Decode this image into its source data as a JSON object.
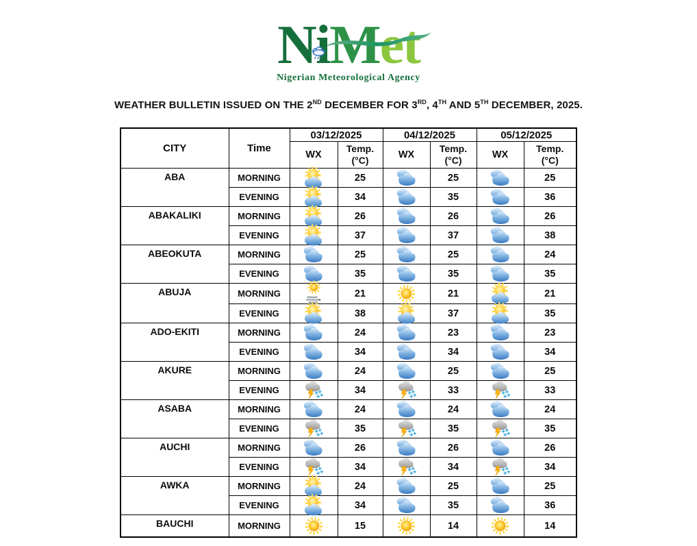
{
  "logo": {
    "n": "N",
    "i": "i",
    "m": "M",
    "et": "et",
    "tagline": "Nigerian Meteorological Agency",
    "colors": {
      "dark_green": "#156f3b",
      "mid_green": "#2d9247",
      "light_green": "#8cc63e",
      "cloud_blue": "#3e77c2"
    }
  },
  "title": {
    "seg1": "WEATHER BULLETIN ISSUED ON THE 2",
    "sup1": "ND",
    "seg2": " DECEMBER FOR 3",
    "sup2": "RD",
    "seg3": ", 4",
    "sup3": "TH",
    "seg4": " AND 5",
    "sup4": "TH",
    "seg5": " DECEMBER, 2025."
  },
  "table": {
    "header": {
      "city": "CITY",
      "time": "Time",
      "wx": "WX",
      "temp_line1": "Temp.",
      "temp_line2": "(°C)"
    },
    "dates": [
      "03/12/2025",
      "04/12/2025",
      "05/12/2025"
    ],
    "rows": [
      {
        "city": "ABA",
        "periods": [
          {
            "time": "MORNING",
            "forecasts": [
              {
                "wx": "partly-cloudy",
                "temp": 25
              },
              {
                "wx": "cloudy",
                "temp": 25
              },
              {
                "wx": "cloudy",
                "temp": 25
              }
            ]
          },
          {
            "time": "EVENING",
            "forecasts": [
              {
                "wx": "partly-cloudy",
                "temp": 34
              },
              {
                "wx": "cloudy",
                "temp": 35
              },
              {
                "wx": "cloudy",
                "temp": 36
              }
            ]
          }
        ]
      },
      {
        "city": "ABAKALIKI",
        "periods": [
          {
            "time": "MORNING",
            "forecasts": [
              {
                "wx": "partly-cloudy",
                "temp": 26
              },
              {
                "wx": "cloudy",
                "temp": 26
              },
              {
                "wx": "cloudy",
                "temp": 26
              }
            ]
          },
          {
            "time": "EVENING",
            "forecasts": [
              {
                "wx": "partly-cloudy",
                "temp": 37
              },
              {
                "wx": "cloudy",
                "temp": 37
              },
              {
                "wx": "cloudy",
                "temp": 38
              }
            ]
          }
        ]
      },
      {
        "city": "ABEOKUTA",
        "periods": [
          {
            "time": "MORNING",
            "forecasts": [
              {
                "wx": "cloudy",
                "temp": 25
              },
              {
                "wx": "cloudy",
                "temp": 25
              },
              {
                "wx": "cloudy",
                "temp": 24
              }
            ]
          },
          {
            "time": "EVENING",
            "forecasts": [
              {
                "wx": "cloudy",
                "temp": 35
              },
              {
                "wx": "cloudy",
                "temp": 35
              },
              {
                "wx": "cloudy",
                "temp": 35
              }
            ]
          }
        ]
      },
      {
        "city": "ABUJA",
        "periods": [
          {
            "time": "MORNING",
            "forecasts": [
              {
                "wx": "sunny-haze",
                "temp": 21
              },
              {
                "wx": "sunny",
                "temp": 21
              },
              {
                "wx": "partly-cloudy",
                "temp": 21
              }
            ]
          },
          {
            "time": "EVENING",
            "forecasts": [
              {
                "wx": "partly-cloudy",
                "temp": 38
              },
              {
                "wx": "partly-cloudy",
                "temp": 37
              },
              {
                "wx": "partly-cloudy",
                "temp": 35
              }
            ]
          }
        ]
      },
      {
        "city": "ADO-EKITI",
        "periods": [
          {
            "time": "MORNING",
            "forecasts": [
              {
                "wx": "cloudy",
                "temp": 24
              },
              {
                "wx": "cloudy",
                "temp": 23
              },
              {
                "wx": "cloudy",
                "temp": 23
              }
            ]
          },
          {
            "time": "EVENING",
            "forecasts": [
              {
                "wx": "cloudy",
                "temp": 34
              },
              {
                "wx": "cloudy",
                "temp": 34
              },
              {
                "wx": "cloudy",
                "temp": 34
              }
            ]
          }
        ]
      },
      {
        "city": "AKURE",
        "periods": [
          {
            "time": "MORNING",
            "forecasts": [
              {
                "wx": "cloudy",
                "temp": 24
              },
              {
                "wx": "cloudy",
                "temp": 25
              },
              {
                "wx": "cloudy",
                "temp": 25
              }
            ]
          },
          {
            "time": "EVENING",
            "forecasts": [
              {
                "wx": "thunderstorm",
                "temp": 34
              },
              {
                "wx": "thunderstorm",
                "temp": 33
              },
              {
                "wx": "thunderstorm",
                "temp": 33
              }
            ]
          }
        ]
      },
      {
        "city": "ASABA",
        "periods": [
          {
            "time": "MORNING",
            "forecasts": [
              {
                "wx": "cloudy",
                "temp": 24
              },
              {
                "wx": "cloudy",
                "temp": 24
              },
              {
                "wx": "cloudy",
                "temp": 24
              }
            ]
          },
          {
            "time": "EVENING",
            "forecasts": [
              {
                "wx": "thunderstorm",
                "temp": 35
              },
              {
                "wx": "thunderstorm",
                "temp": 35
              },
              {
                "wx": "thunderstorm",
                "temp": 35
              }
            ]
          }
        ]
      },
      {
        "city": "AUCHI",
        "periods": [
          {
            "time": "MORNING",
            "forecasts": [
              {
                "wx": "cloudy",
                "temp": 26
              },
              {
                "wx": "cloudy",
                "temp": 26
              },
              {
                "wx": "cloudy",
                "temp": 26
              }
            ]
          },
          {
            "time": "EVENING",
            "forecasts": [
              {
                "wx": "thunderstorm",
                "temp": 34
              },
              {
                "wx": "thunderstorm",
                "temp": 34
              },
              {
                "wx": "thunderstorm",
                "temp": 34
              }
            ]
          }
        ]
      },
      {
        "city": "AWKA",
        "periods": [
          {
            "time": "MORNING",
            "forecasts": [
              {
                "wx": "partly-cloudy",
                "temp": 24
              },
              {
                "wx": "cloudy",
                "temp": 25
              },
              {
                "wx": "cloudy",
                "temp": 25
              }
            ]
          },
          {
            "time": "EVENING",
            "forecasts": [
              {
                "wx": "partly-cloudy",
                "temp": 34
              },
              {
                "wx": "cloudy",
                "temp": 35
              },
              {
                "wx": "cloudy",
                "temp": 36
              }
            ]
          }
        ]
      },
      {
        "city": "BAUCHI",
        "periods": [
          {
            "time": "MORNING",
            "forecasts": [
              {
                "wx": "sunny",
                "temp": 15
              },
              {
                "wx": "sunny",
                "temp": 14
              },
              {
                "wx": "sunny",
                "temp": 14
              }
            ]
          }
        ]
      }
    ]
  }
}
